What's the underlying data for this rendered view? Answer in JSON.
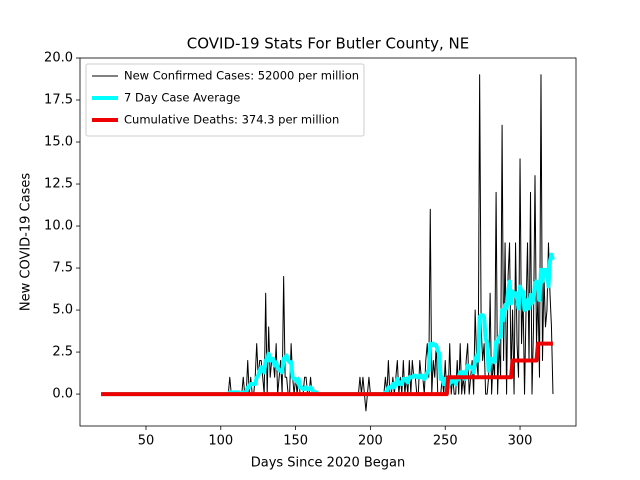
{
  "chart_data": {
    "type": "line",
    "title": "COVID-19 Stats For Butler County, NE",
    "x_label": "Days Since 2020 Began",
    "y_label": "New COVID-19 Cases",
    "xlim": [
      5.9,
      337.4
    ],
    "ylim": [
      -1.9,
      20
    ],
    "xticks": [
      50,
      100,
      150,
      200,
      250,
      300
    ],
    "yticks": [
      {
        "value": 0,
        "label": "0.0"
      },
      2.5,
      {
        "value": 5,
        "label": "5.0"
      },
      7.5,
      {
        "value": 10,
        "label": "10.0"
      },
      12.5,
      {
        "value": 15,
        "label": "15.0"
      },
      17.5,
      {
        "value": 20,
        "label": "20.0"
      }
    ],
    "legend": "upper left",
    "x": [
      20,
      100,
      101,
      102,
      103,
      104,
      105,
      106,
      107,
      108,
      109,
      110,
      111,
      112,
      113,
      114,
      115,
      116,
      117,
      118,
      119,
      120,
      121,
      122,
      123,
      124,
      125,
      126,
      127,
      128,
      129,
      130,
      131,
      132,
      133,
      134,
      135,
      136,
      137,
      138,
      139,
      140,
      141,
      142,
      143,
      144,
      145,
      146,
      147,
      148,
      149,
      150,
      151,
      152,
      153,
      154,
      155,
      156,
      157,
      158,
      159,
      160,
      161,
      162,
      163,
      164,
      165,
      166,
      167,
      168,
      169,
      170,
      171,
      172,
      173,
      174,
      175,
      176,
      177,
      178,
      179,
      180,
      181,
      182,
      183,
      184,
      185,
      186,
      187,
      188,
      189,
      190,
      191,
      192,
      193,
      194,
      195,
      196,
      197,
      198,
      199,
      200,
      201,
      202,
      203,
      204,
      205,
      206,
      207,
      208,
      209,
      210,
      211,
      212,
      213,
      214,
      215,
      216,
      217,
      218,
      219,
      220,
      221,
      222,
      223,
      224,
      225,
      226,
      227,
      228,
      229,
      230,
      231,
      232,
      233,
      234,
      235,
      236,
      237,
      238,
      239,
      240,
      241,
      242,
      243,
      244,
      245,
      246,
      247,
      248,
      249,
      250,
      251,
      252,
      253,
      254,
      255,
      256,
      257,
      258,
      259,
      260,
      261,
      262,
      263,
      264,
      265,
      266,
      267,
      268,
      269,
      270,
      271,
      272,
      273,
      274,
      275,
      276,
      277,
      278,
      279,
      280,
      281,
      282,
      283,
      284,
      285,
      286,
      287,
      288,
      289,
      290,
      291,
      292,
      293,
      294,
      295,
      296,
      297,
      298,
      299,
      300,
      301,
      302,
      303,
      304,
      305,
      306,
      307,
      308,
      309,
      310,
      311,
      312,
      313,
      314,
      315,
      316,
      317,
      318,
      319,
      320,
      321,
      322
    ],
    "series": [
      {
        "name": "New Confirmed Cases: 52000 per million",
        "color": "#000000",
        "width": 1,
        "values": [
          0,
          0,
          0,
          0,
          0,
          0,
          0,
          1,
          0,
          0,
          0,
          0,
          0,
          0,
          0,
          0,
          1,
          0,
          0,
          2,
          0,
          1,
          0,
          0,
          1,
          3,
          1,
          2,
          2,
          1,
          0,
          6,
          0,
          4,
          1,
          2,
          2,
          1,
          3,
          0,
          1,
          2,
          0,
          7,
          1,
          1,
          0,
          0,
          3,
          1,
          0,
          1,
          0,
          1,
          0,
          0,
          0,
          1,
          1,
          0,
          0,
          1,
          0,
          0,
          0,
          0,
          0,
          0,
          0,
          0,
          0,
          0,
          0,
          0,
          0,
          0,
          0,
          0,
          0,
          0,
          0,
          0,
          0,
          0,
          0,
          0,
          0,
          0,
          0,
          0,
          0,
          0,
          0,
          0,
          1,
          0,
          1,
          0,
          -1,
          0,
          1,
          0,
          0,
          0,
          0,
          0,
          0,
          0,
          0,
          0,
          0,
          1,
          0,
          2,
          0,
          0,
          1,
          0,
          1,
          2,
          0,
          1,
          0,
          2,
          0,
          1,
          0,
          2,
          0,
          2,
          1,
          1,
          0,
          0,
          2,
          1,
          1,
          0,
          2,
          3,
          1,
          11,
          0,
          2,
          1,
          3,
          0,
          0,
          0,
          1,
          0,
          2,
          0,
          0,
          3,
          0,
          1,
          0,
          0,
          2,
          0,
          3,
          0,
          1,
          0,
          2,
          3,
          0,
          1,
          2,
          0,
          5,
          2,
          1,
          19,
          4,
          2,
          3,
          0,
          0,
          1,
          6,
          0,
          2,
          1,
          12,
          0,
          3,
          1,
          16,
          2,
          9,
          0,
          7,
          9,
          1,
          5,
          0,
          9,
          3,
          1,
          14,
          3,
          6,
          0,
          5,
          9,
          2,
          12,
          0,
          4,
          13,
          3,
          6,
          1,
          19,
          2,
          7,
          4,
          5,
          9,
          6,
          4,
          0
        ]
      },
      {
        "name": "7 Day Case Average",
        "color": "#00ffff",
        "width": 4,
        "values": [
          0,
          0,
          0,
          0,
          0,
          0,
          0,
          0.1,
          0.1,
          0.1,
          0.1,
          0.1,
          0.1,
          0.1,
          0,
          0,
          0.1,
          0.1,
          0.1,
          0.4,
          0.4,
          0.6,
          0.6,
          0.6,
          0.6,
          1,
          1.1,
          1.4,
          1.6,
          1.4,
          1.3,
          2,
          2,
          2.4,
          2,
          2,
          2.1,
          1.7,
          1.9,
          1.6,
          1.4,
          1.4,
          1.3,
          2.1,
          2.1,
          2.3,
          2,
          1.9,
          1.9,
          1,
          0.9,
          0.9,
          0.7,
          0.9,
          0.4,
          0.4,
          0.3,
          0.3,
          0.4,
          0.3,
          0.3,
          0.4,
          0.3,
          0.1,
          0.1,
          0.1,
          0,
          0,
          0,
          0,
          0,
          0,
          0,
          0,
          0,
          0,
          0,
          0,
          0,
          0,
          0,
          0,
          0,
          0,
          0,
          0,
          0,
          0,
          0,
          0,
          0,
          0,
          0,
          0,
          0,
          0,
          0,
          0,
          0,
          0,
          0,
          0,
          0,
          0,
          0,
          0,
          0,
          0,
          0,
          0,
          0,
          0.1,
          0.1,
          0.4,
          0.4,
          0.4,
          0.6,
          0.4,
          0.6,
          0.9,
          0.6,
          0.7,
          0.6,
          0.9,
          0.9,
          0.9,
          0.7,
          1,
          1,
          1,
          1.1,
          1.1,
          1,
          1,
          1.1,
          1,
          1.1,
          0.9,
          1,
          1.3,
          1.4,
          3,
          2.9,
          3,
          2.9,
          2.9,
          2.6,
          2.4,
          0.9,
          1,
          0.6,
          0.9,
          0.4,
          0.4,
          0.7,
          0.7,
          0.9,
          0.9,
          0.6,
          0.9,
          0.9,
          1.3,
          1.3,
          1.3,
          0.9,
          1.3,
          1.7,
          1.6,
          1.6,
          1.6,
          1.3,
          2,
          2.3,
          2,
          4.6,
          4.7,
          4.7,
          4.6,
          3.3,
          3,
          1.4,
          2.1,
          2.1,
          2,
          1.9,
          3.1,
          3.1,
          3.4,
          3.4,
          5,
          4.4,
          5.3,
          5.1,
          6.1,
          6.7,
          5.4,
          6.1,
          5.9,
          6,
          5.7,
          5.1,
          6.4,
          6.1,
          6.1,
          5,
          5.1,
          5.6,
          5.1,
          5.9,
          5.4,
          5.6,
          6.6,
          6.7,
          6.6,
          5.6,
          7.4,
          6.7,
          7.4,
          7.3,
          7.4,
          6.4,
          7.9,
          8.3,
          8
        ]
      },
      {
        "name": "Cumulative Deaths: 374.3 per million",
        "color": "#ee0000",
        "width": 4,
        "values": [
          0,
          0,
          0,
          0,
          0,
          0,
          0,
          0,
          0,
          0,
          0,
          0,
          0,
          0,
          0,
          0,
          0,
          0,
          0,
          0,
          0,
          0,
          0,
          0,
          0,
          0,
          0,
          0,
          0,
          0,
          0,
          0,
          0,
          0,
          0,
          0,
          0,
          0,
          0,
          0,
          0,
          0,
          0,
          0,
          0,
          0,
          0,
          0,
          0,
          0,
          0,
          0,
          0,
          0,
          0,
          0,
          0,
          0,
          0,
          0,
          0,
          0,
          0,
          0,
          0,
          0,
          0,
          0,
          0,
          0,
          0,
          0,
          0,
          0,
          0,
          0,
          0,
          0,
          0,
          0,
          0,
          0,
          0,
          0,
          0,
          0,
          0,
          0,
          0,
          0,
          0,
          0,
          0,
          0,
          0,
          0,
          0,
          0,
          0,
          0,
          0,
          0,
          0,
          0,
          0,
          0,
          0,
          0,
          0,
          0,
          0,
          0,
          0,
          0,
          0,
          0,
          0,
          0,
          0,
          0,
          0,
          0,
          0,
          0,
          0,
          0,
          0,
          0,
          0,
          0,
          0,
          0,
          0,
          0,
          0,
          0,
          0,
          0,
          0,
          0,
          0,
          0,
          0,
          0,
          0,
          0,
          0,
          0,
          0,
          0,
          0,
          0,
          0,
          1,
          1,
          1,
          1,
          1,
          1,
          1,
          1,
          1,
          1,
          1,
          1,
          1,
          1,
          1,
          1,
          1,
          1,
          1,
          1,
          1,
          1,
          1,
          1,
          1,
          1,
          1,
          1,
          1,
          1,
          1,
          1,
          1,
          1,
          1,
          1,
          1,
          1,
          1,
          1,
          1,
          1,
          1,
          2,
          2,
          2,
          2,
          2,
          2,
          2,
          2,
          2,
          2,
          2,
          2,
          2,
          2,
          2,
          2,
          2,
          3,
          3,
          3,
          3,
          3,
          3,
          3,
          3,
          3,
          3,
          3
        ]
      }
    ]
  }
}
